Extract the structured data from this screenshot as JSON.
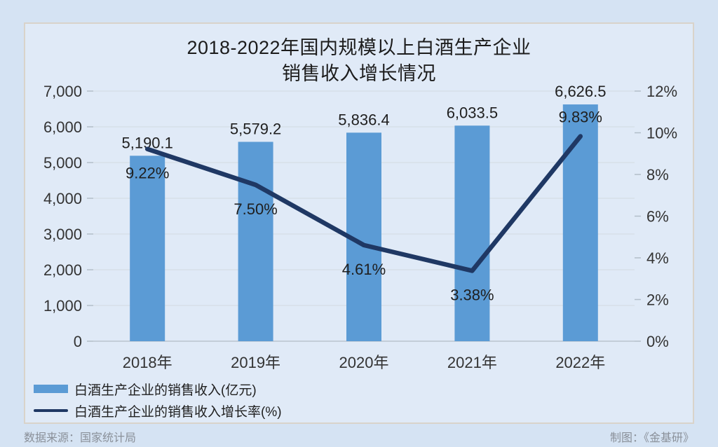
{
  "footer": {
    "source_label": "数据来源：国家统计局",
    "credit_label": "制图：《金基研》"
  },
  "colors": {
    "bar": "#5b9bd5",
    "line": "#1f3864",
    "gridline": "#d2dae2",
    "axis_line": "#b9c3ce",
    "tick": "#b3bec9",
    "card_background": "#e0eaf7",
    "page_background": "#d5e3f3"
  },
  "chart_data": {
    "type": "bar",
    "title": "2018-2022年国内规模以上白酒生产企业销售收入增长情况",
    "title_lines": [
      "2018-2022年国内规模以上白酒生产企业",
      "销售收入增长情况"
    ],
    "categories": [
      "2018年",
      "2019年",
      "2020年",
      "2021年",
      "2022年"
    ],
    "series": [
      {
        "name": "白酒生产企业的销售收入(亿元)",
        "type": "bar",
        "axis": "left",
        "color": "#5b9bd5",
        "values": [
          5190.1,
          5579.2,
          5836.4,
          6033.5,
          6626.5
        ],
        "labels": [
          "5,190.1",
          "5,579.2",
          "5,836.4",
          "6,033.5",
          "6,626.5"
        ]
      },
      {
        "name": "白酒生产企业的销售收入增长率(%)",
        "type": "line",
        "axis": "right",
        "color": "#1f3864",
        "values": [
          9.22,
          7.5,
          4.61,
          3.38,
          9.83
        ],
        "labels": [
          "9.22%",
          "7.50%",
          "4.61%",
          "3.38%",
          "9.83%"
        ],
        "label_side": [
          "below",
          "below",
          "below",
          "below",
          "above"
        ]
      }
    ],
    "left_axis": {
      "min": 0,
      "max": 7000,
      "step": 1000,
      "tick_labels": [
        "0",
        "1,000",
        "2,000",
        "3,000",
        "4,000",
        "5,000",
        "6,000",
        "7,000"
      ]
    },
    "right_axis": {
      "min": 0,
      "max": 12,
      "step": 2,
      "tick_labels": [
        "0%",
        "2%",
        "4%",
        "6%",
        "8%",
        "10%",
        "12%"
      ]
    },
    "grid": true,
    "legend_position": "bottom-left"
  }
}
